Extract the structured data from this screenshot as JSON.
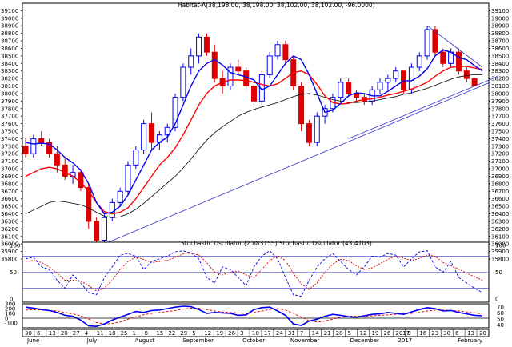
{
  "chart_data": [
    {
      "type": "candlestick",
      "title": "Habitat-A(38,198.00, 38,198.00, 38,102.00, 38,102.00, -96.0000)",
      "ylim": [
        35800,
        39200
      ],
      "y_ticks": [
        35800,
        35900,
        36000,
        36100,
        36200,
        36300,
        36400,
        36500,
        36600,
        36700,
        36800,
        36900,
        37000,
        37100,
        37200,
        37300,
        37400,
        37500,
        37600,
        37700,
        37800,
        37900,
        38000,
        38100,
        38200,
        38300,
        38400,
        38500,
        38600,
        38700,
        38800,
        38900,
        39000,
        39100
      ],
      "x_tick_labels": [
        "30",
        "6",
        "13",
        "20",
        "27",
        "4",
        "11",
        "18",
        "25",
        "1",
        "8",
        "15",
        "22",
        "29",
        "5",
        "12",
        "19",
        "26",
        "3",
        "10",
        "17",
        "24",
        "31",
        "7",
        "14",
        "21",
        "28",
        "5",
        "12",
        "19",
        "26",
        "2017",
        "9",
        "16",
        "23",
        "30",
        "6",
        "13",
        "20"
      ],
      "month_labels": [
        "June",
        "July",
        "August",
        "September",
        "October",
        "November",
        "December",
        "2017",
        "February"
      ],
      "candles": [
        [
          37300,
          37400,
          37150,
          37200
        ],
        [
          37200,
          37450,
          37150,
          37400
        ],
        [
          37400,
          37500,
          37300,
          37350
        ],
        [
          37350,
          37400,
          37150,
          37200
        ],
        [
          37200,
          37300,
          36950,
          37050
        ],
        [
          37050,
          37150,
          36850,
          36900
        ],
        [
          36900,
          37050,
          36800,
          36950
        ],
        [
          36950,
          37000,
          36700,
          36750
        ],
        [
          36750,
          36800,
          36200,
          36300
        ],
        [
          36300,
          36350,
          36000,
          36050
        ],
        [
          36050,
          36400,
          36000,
          36350
        ],
        [
          36350,
          36600,
          36300,
          36550
        ],
        [
          36550,
          36750,
          36500,
          36700
        ],
        [
          36700,
          37100,
          36650,
          37050
        ],
        [
          37050,
          37300,
          37000,
          37250
        ],
        [
          37250,
          37650,
          37200,
          37600
        ],
        [
          37600,
          37750,
          37250,
          37350
        ],
        [
          37350,
          37500,
          37250,
          37450
        ],
        [
          37450,
          37600,
          37350,
          37550
        ],
        [
          37550,
          38000,
          37500,
          37950
        ],
        [
          37950,
          38400,
          37900,
          38350
        ],
        [
          38350,
          38600,
          38250,
          38500
        ],
        [
          38500,
          38800,
          38400,
          38750
        ],
        [
          38750,
          38800,
          38500,
          38550
        ],
        [
          38550,
          38650,
          38150,
          38200
        ],
        [
          38200,
          38300,
          38000,
          38100
        ],
        [
          38100,
          38400,
          38050,
          38350
        ],
        [
          38350,
          38450,
          38250,
          38300
        ],
        [
          38300,
          38350,
          38050,
          38100
        ],
        [
          38100,
          38150,
          37850,
          37900
        ],
        [
          37900,
          38300,
          37850,
          38250
        ],
        [
          38250,
          38550,
          38200,
          38500
        ],
        [
          38500,
          38700,
          38450,
          38650
        ],
        [
          38650,
          38700,
          38400,
          38450
        ],
        [
          38450,
          38500,
          38050,
          38100
        ],
        [
          38100,
          38150,
          37500,
          37600
        ],
        [
          37600,
          37650,
          37300,
          37350
        ],
        [
          37350,
          37750,
          37300,
          37700
        ],
        [
          37700,
          37850,
          37600,
          37800
        ],
        [
          37800,
          38000,
          37750,
          37950
        ],
        [
          37950,
          38200,
          37900,
          38150
        ],
        [
          38150,
          38200,
          37950,
          38000
        ],
        [
          38000,
          38050,
          37900,
          37950
        ],
        [
          37950,
          38000,
          37850,
          37900
        ],
        [
          37900,
          38100,
          37850,
          38050
        ],
        [
          38050,
          38200,
          38000,
          38150
        ],
        [
          38150,
          38250,
          38050,
          38200
        ],
        [
          38200,
          38350,
          38150,
          38300
        ],
        [
          38300,
          38300,
          38000,
          38050
        ],
        [
          38050,
          38400,
          38000,
          38350
        ],
        [
          38350,
          38550,
          38300,
          38500
        ],
        [
          38500,
          38900,
          38450,
          38850
        ],
        [
          38850,
          38900,
          38500,
          38550
        ],
        [
          38550,
          38600,
          38350,
          38400
        ],
        [
          38400,
          38600,
          38350,
          38550
        ],
        [
          38550,
          38600,
          38250,
          38300
        ],
        [
          38300,
          38350,
          38150,
          38200
        ],
        [
          38198,
          38198,
          38102,
          38102
        ]
      ],
      "ma_fast": [
        37350,
        37330,
        37340,
        37330,
        37250,
        37150,
        37080,
        36980,
        36800,
        36550,
        36400,
        36420,
        36500,
        36650,
        36850,
        37050,
        37250,
        37350,
        37420,
        37600,
        37850,
        38100,
        38300,
        38400,
        38450,
        38380,
        38280,
        38250,
        38220,
        38180,
        38050,
        38100,
        38250,
        38400,
        38500,
        38450,
        38250,
        38000,
        37750,
        37780,
        37870,
        37970,
        38010,
        38000,
        37970,
        37970,
        38030,
        38100,
        38170,
        38170,
        38230,
        38330,
        38500,
        38580,
        38550,
        38480,
        38450,
        38370,
        38300
      ],
      "ma_slow": [
        36900,
        36950,
        37000,
        37020,
        37000,
        36950,
        36900,
        36820,
        36700,
        36550,
        36430,
        36400,
        36420,
        36480,
        36600,
        36750,
        36900,
        37050,
        37150,
        37280,
        37450,
        37650,
        37850,
        38000,
        38100,
        38150,
        38180,
        38180,
        38170,
        38150,
        38120,
        38100,
        38130,
        38200,
        38280,
        38300,
        38250,
        38120,
        37970,
        37880,
        37860,
        37870,
        37900,
        37920,
        37930,
        37950,
        37980,
        38000,
        38030,
        38060,
        38100,
        38150,
        38230,
        38300,
        38350,
        38360,
        38360,
        38340,
        38320
      ],
      "ma_long": [
        36400,
        36450,
        36500,
        36550,
        36570,
        36560,
        36540,
        36520,
        36480,
        36420,
        36370,
        36350,
        36360,
        36400,
        36460,
        36540,
        36630,
        36720,
        36810,
        36900,
        37010,
        37130,
        37260,
        37380,
        37480,
        37560,
        37630,
        37700,
        37750,
        37790,
        37820,
        37850,
        37880,
        37920,
        37960,
        37990,
        38000,
        37980,
        37950,
        37920,
        37900,
        37880,
        37880,
        37890,
        37900,
        37920,
        37940,
        37960,
        37990,
        38010,
        38040,
        38070,
        38110,
        38150,
        38190,
        38220,
        38240,
        38250,
        38250
      ],
      "trendlines": [
        {
          "from": [
            10,
            36000
          ],
          "to": [
            59,
            38150
          ]
        },
        {
          "from": [
            41,
            37400
          ],
          "to": [
            60,
            38230
          ]
        },
        {
          "from": [
            51,
            38900
          ],
          "to": [
            58,
            38350
          ]
        }
      ]
    },
    {
      "type": "line",
      "title": "Stochastic Oscillator (2.883155) Stochastic Oscillator (43.4103)",
      "ylim": [
        0,
        100
      ],
      "left_ticks": [
        0,
        50,
        100
      ],
      "right_ticks": [
        0,
        50,
        100
      ],
      "hlines": [
        20,
        50,
        80
      ],
      "series": [
        {
          "values": [
            75,
            78,
            60,
            55,
            35,
            20,
            45,
            30,
            12,
            8,
            40,
            60,
            82,
            85,
            80,
            55,
            70,
            75,
            80,
            88,
            90,
            86,
            75,
            40,
            30,
            60,
            55,
            40,
            25,
            60,
            80,
            90,
            75,
            40,
            8,
            5,
            35,
            60,
            75,
            85,
            70,
            55,
            45,
            60,
            80,
            78,
            85,
            82,
            60,
            75,
            88,
            90,
            60,
            50,
            70,
            40,
            30,
            20,
            12
          ]
        },
        {
          "values": [
            70,
            72,
            68,
            60,
            48,
            35,
            35,
            33,
            25,
            15,
            20,
            35,
            55,
            70,
            78,
            74,
            68,
            70,
            72,
            78,
            84,
            86,
            82,
            68,
            50,
            45,
            50,
            52,
            45,
            40,
            55,
            72,
            80,
            72,
            48,
            28,
            18,
            30,
            50,
            65,
            74,
            72,
            62,
            55,
            58,
            66,
            74,
            80,
            76,
            72,
            76,
            82,
            80,
            68,
            62,
            56,
            48,
            42,
            35
          ]
        }
      ]
    },
    {
      "type": "line",
      "left_ylim": [
        -200,
        300
      ],
      "right_ylim": [
        35,
        75
      ],
      "left_ticks": [
        -100,
        0,
        100,
        200,
        300
      ],
      "right_ticks": [
        40,
        50,
        60,
        70
      ],
      "hlines_left": [
        0
      ],
      "series": [
        {
          "values": [
            230,
            210,
            180,
            160,
            120,
            60,
            40,
            -40,
            -160,
            -170,
            -120,
            -40,
            20,
            80,
            140,
            120,
            160,
            170,
            200,
            230,
            250,
            240,
            180,
            100,
            120,
            110,
            100,
            60,
            70,
            180,
            220,
            230,
            150,
            60,
            -120,
            -150,
            -60,
            -20,
            40,
            80,
            60,
            30,
            20,
            50,
            80,
            90,
            120,
            100,
            80,
            130,
            180,
            220,
            200,
            150,
            160,
            120,
            90,
            60,
            50
          ]
        },
        {
          "values": [
            170,
            175,
            170,
            165,
            150,
            120,
            90,
            50,
            -20,
            -90,
            -120,
            -110,
            -80,
            -20,
            30,
            70,
            100,
            120,
            140,
            160,
            190,
            210,
            210,
            180,
            150,
            130,
            120,
            110,
            100,
            120,
            150,
            180,
            200,
            170,
            100,
            20,
            -50,
            -80,
            -60,
            -20,
            20,
            40,
            40,
            40,
            50,
            60,
            70,
            80,
            90,
            100,
            120,
            150,
            170,
            170,
            160,
            150,
            130,
            110,
            90
          ]
        }
      ]
    }
  ]
}
